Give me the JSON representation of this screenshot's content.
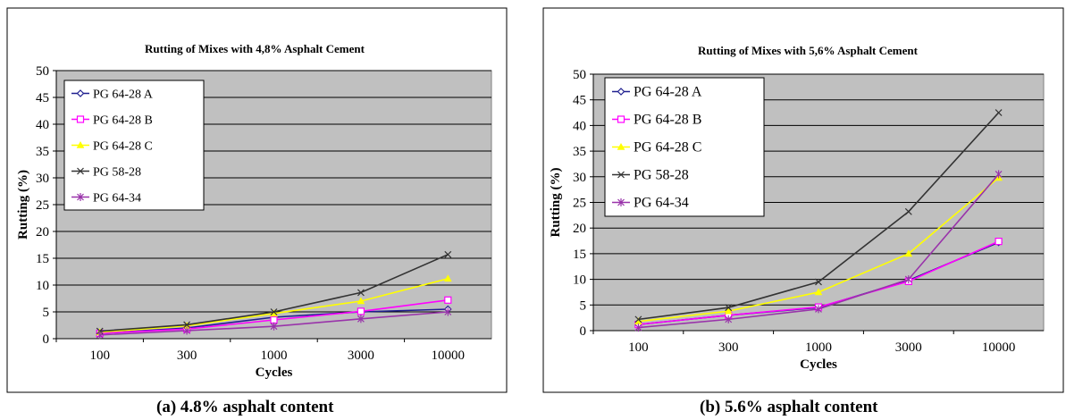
{
  "chart_data": [
    {
      "type": "line",
      "title": "Rutting of Mixes with 4,8% Asphalt Cement",
      "xlabel": "Cycles",
      "ylabel": "Rutting (%)",
      "caption": "(a) 4.8% asphalt content",
      "categories": [
        "100",
        "300",
        "1000",
        "3000",
        "10000"
      ],
      "ylim": [
        0,
        50
      ],
      "yticks": [
        "0",
        "5",
        "10",
        "15",
        "20",
        "25",
        "30",
        "35",
        "40",
        "45",
        "50"
      ],
      "grid": true,
      "legend_position": "top-left",
      "series": [
        {
          "name": "PG 64-28 A",
          "color": "#1f1f8f",
          "marker": "diamond",
          "values": [
            1.0,
            2.0,
            4.0,
            5.0,
            5.5
          ]
        },
        {
          "name": "PG 64-28 B",
          "color": "#ff00ff",
          "marker": "square",
          "values": [
            1.0,
            1.8,
            3.5,
            5.1,
            7.2
          ]
        },
        {
          "name": "PG 64-28 C",
          "color": "#ffff00",
          "marker": "triangle",
          "values": [
            1.2,
            2.4,
            4.7,
            7.0,
            11.2
          ]
        },
        {
          "name": "PG 58-28",
          "color": "#333333",
          "marker": "x",
          "values": [
            1.4,
            2.6,
            5.0,
            8.6,
            15.7
          ]
        },
        {
          "name": "PG 64-34",
          "color": "#9933aa",
          "marker": "asterisk",
          "values": [
            0.7,
            1.5,
            2.3,
            3.7,
            5.0
          ]
        }
      ]
    },
    {
      "type": "line",
      "title": "Rutting of Mixes with 5,6% Asphalt Cement",
      "xlabel": "Cycles",
      "ylabel": "Rutting (%)",
      "caption": "(b) 5.6% asphalt content",
      "categories": [
        "100",
        "300",
        "1000",
        "3000",
        "10000"
      ],
      "ylim": [
        0,
        50
      ],
      "yticks": [
        "0",
        "5",
        "10",
        "15",
        "20",
        "25",
        "30",
        "35",
        "40",
        "45",
        "50"
      ],
      "grid": true,
      "legend_position": "top-left",
      "series": [
        {
          "name": "PG 64-28 A",
          "color": "#1f1f8f",
          "marker": "diamond",
          "values": [
            1.2,
            3.0,
            4.5,
            9.8,
            17.2
          ]
        },
        {
          "name": "PG 64-28 B",
          "color": "#ff00ff",
          "marker": "square",
          "values": [
            1.2,
            3.0,
            4.6,
            9.6,
            17.4
          ]
        },
        {
          "name": "PG 64-28 C",
          "color": "#ffff00",
          "marker": "triangle",
          "values": [
            1.8,
            3.8,
            7.5,
            15.0,
            29.8
          ]
        },
        {
          "name": "PG 58-28",
          "color": "#333333",
          "marker": "x",
          "values": [
            2.2,
            4.5,
            9.5,
            23.2,
            42.5
          ]
        },
        {
          "name": "PG 64-34",
          "color": "#9933aa",
          "marker": "asterisk",
          "values": [
            0.6,
            2.2,
            4.2,
            10.0,
            30.5
          ]
        }
      ]
    }
  ]
}
